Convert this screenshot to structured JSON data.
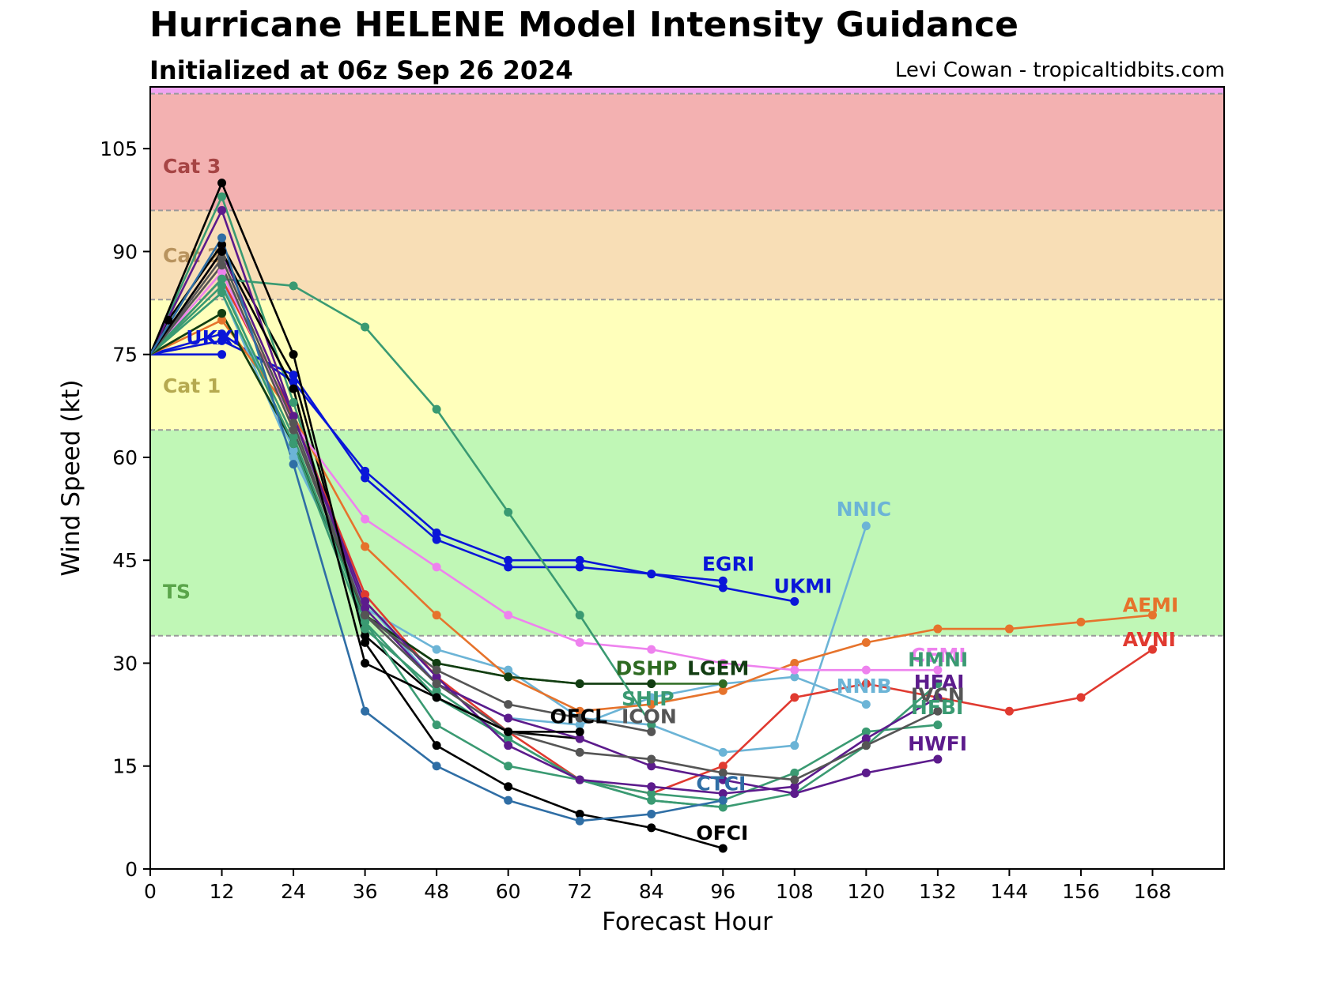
{
  "chart_data": {
    "type": "line",
    "title": "Hurricane HELENE Model Intensity Guidance",
    "subtitle": "Initialized at 06z Sep 26 2024",
    "credit": "Levi Cowan - tropicaltidbits.com",
    "xlabel": "Forecast Hour",
    "ylabel": "Wind Speed (kt)",
    "xlim": [
      0,
      180
    ],
    "ylim": [
      0,
      114
    ],
    "xticks": [
      0,
      12,
      24,
      36,
      48,
      60,
      72,
      84,
      96,
      108,
      120,
      132,
      144,
      156,
      168
    ],
    "yticks": [
      0,
      15,
      30,
      45,
      60,
      75,
      90,
      105
    ],
    "grid": false,
    "bands": [
      {
        "label": "",
        "from": 0,
        "to": 34,
        "color": "#ffffff",
        "label_color": "#ffffff"
      },
      {
        "label": "TS",
        "from": 34,
        "to": 64,
        "color": "#c0f7b6",
        "label_color": "#5aa54a"
      },
      {
        "label": "Cat 1",
        "from": 64,
        "to": 83,
        "color": "#ffffbb",
        "label_color": "#b5a94f"
      },
      {
        "label": "Cat 2",
        "from": 83,
        "to": 96,
        "color": "#f8deb6",
        "label_color": "#b8935e"
      },
      {
        "label": "Cat 3",
        "from": 96,
        "to": 113,
        "color": "#f3b1b1",
        "label_color": "#a64444"
      },
      {
        "label": "",
        "from": 113,
        "to": 114,
        "color": "#f0a4f0",
        "label_color": "#f0a4f0"
      }
    ],
    "series": [
      {
        "name": "EGRI",
        "color": "#0a16d8",
        "x": [
          0,
          12,
          24,
          36,
          48,
          60,
          72,
          84,
          96
        ],
        "y": [
          75,
          78,
          71,
          58,
          49,
          45,
          45,
          43,
          42
        ]
      },
      {
        "name": "UKMI",
        "color": "#0a16d8",
        "x": [
          0,
          12,
          24,
          36,
          48,
          60,
          72,
          84,
          96,
          108
        ],
        "y": [
          75,
          77,
          72,
          57,
          48,
          44,
          44,
          43,
          41,
          39
        ]
      },
      {
        "name": "UKXI",
        "color": "#0a16d8",
        "x": [
          0,
          12
        ],
        "y": [
          75,
          75
        ]
      },
      {
        "name": "NNIC",
        "color": "#6cb4d6",
        "x": [
          0,
          12,
          24,
          36,
          48,
          60,
          72,
          84,
          96,
          108,
          120
        ],
        "y": [
          75,
          86,
          61,
          38,
          32,
          29,
          22,
          21,
          17,
          18,
          50
        ]
      },
      {
        "name": "NNIB",
        "color": "#6cb4d6",
        "x": [
          0,
          12,
          24,
          36,
          48,
          60,
          72,
          84,
          96,
          108,
          120
        ],
        "y": [
          75,
          84,
          60,
          39,
          27,
          22,
          21,
          25,
          27,
          28,
          24
        ]
      },
      {
        "name": "AEMI",
        "color": "#e6732c",
        "x": [
          0,
          12,
          24,
          36,
          48,
          60,
          72,
          84,
          96,
          108,
          120,
          132,
          144,
          156,
          168
        ],
        "y": [
          75,
          80,
          66,
          47,
          37,
          28,
          23,
          24,
          26,
          30,
          33,
          35,
          35,
          36,
          37
        ]
      },
      {
        "name": "AVNI",
        "color": "#e03a30",
        "x": [
          0,
          12,
          24,
          36,
          48,
          60,
          72,
          84,
          96,
          108,
          120,
          132,
          144,
          156,
          168
        ],
        "y": [
          75,
          86,
          66,
          40,
          28,
          20,
          13,
          11,
          15,
          25,
          27,
          25,
          23,
          25,
          32
        ]
      },
      {
        "name": "CEMI",
        "color": "#ee82ee",
        "x": [
          0,
          12,
          24,
          36,
          48,
          60,
          72,
          84,
          96,
          108,
          120,
          132
        ],
        "y": [
          75,
          87,
          65,
          51,
          44,
          37,
          33,
          32,
          30,
          29,
          29,
          29
        ]
      },
      {
        "name": "DSHP",
        "color": "#2e6b22",
        "x": [
          0,
          12,
          24,
          36,
          48,
          60,
          72,
          84,
          96
        ],
        "y": [
          75,
          81,
          62,
          37,
          30,
          28,
          27,
          27,
          27
        ]
      },
      {
        "name": "LGEM",
        "color": "#123d12",
        "x": [
          0,
          12,
          24,
          36,
          48,
          60,
          72,
          84
        ],
        "y": [
          75,
          81,
          62,
          37,
          30,
          28,
          27,
          27
        ]
      },
      {
        "name": "SHIP",
        "color": "#3a9a72",
        "x": [
          0,
          12,
          24,
          36,
          48,
          60,
          72,
          84
        ],
        "y": [
          75,
          86,
          85,
          79,
          67,
          52,
          37,
          21
        ]
      },
      {
        "name": "HMNI",
        "color": "#3a9a72",
        "x": [
          0,
          12,
          24,
          36,
          48,
          60,
          72,
          84,
          96,
          108,
          120,
          132
        ],
        "y": [
          75,
          84,
          62,
          35,
          26,
          19,
          13,
          10,
          9,
          11,
          18,
          27
        ]
      },
      {
        "name": "HFBI",
        "color": "#3a9a72",
        "x": [
          0,
          12,
          24,
          36,
          48,
          60,
          72,
          84,
          96,
          108,
          120,
          132
        ],
        "y": [
          75,
          85,
          63,
          36,
          21,
          15,
          13,
          11,
          10,
          14,
          20,
          21
        ]
      },
      {
        "name": "HFAI",
        "color": "#5c1b8c",
        "x": [
          0,
          12,
          24,
          36,
          48,
          60,
          72,
          84,
          96,
          108,
          120,
          132
        ],
        "y": [
          75,
          96,
          66,
          39,
          28,
          18,
          13,
          12,
          11,
          12,
          19,
          25
        ]
      },
      {
        "name": "HWFI",
        "color": "#5c1b8c",
        "x": [
          0,
          12,
          24,
          36,
          48,
          60,
          72,
          84,
          96,
          108,
          120,
          132
        ],
        "y": [
          75,
          90,
          66,
          38,
          27,
          22,
          19,
          15,
          13,
          11,
          14,
          16
        ]
      },
      {
        "name": "IVCN",
        "color": "#555555",
        "x": [
          0,
          12,
          24,
          36,
          48,
          60,
          72,
          84,
          96,
          108,
          120,
          132
        ],
        "y": [
          75,
          89,
          65,
          37,
          27,
          20,
          17,
          16,
          14,
          13,
          18,
          23
        ]
      },
      {
        "name": "ICON",
        "color": "#555555",
        "x": [
          0,
          12,
          24,
          36,
          48,
          60,
          72,
          84
        ],
        "y": [
          75,
          88,
          64,
          37,
          29,
          24,
          22,
          20
        ]
      },
      {
        "name": "OFCL",
        "color": "#000000",
        "x": [
          0,
          12,
          24,
          36,
          48,
          60,
          72
        ],
        "y": [
          75,
          90,
          70,
          30,
          25,
          20,
          20
        ]
      },
      {
        "name": "OFCI",
        "color": "#000000",
        "x": [
          0,
          12,
          24,
          36,
          48,
          60,
          72,
          84,
          96
        ],
        "y": [
          75,
          100,
          75,
          33,
          18,
          12,
          8,
          6,
          3
        ]
      },
      {
        "name": "CTCI",
        "color": "#2f6ea5",
        "x": [
          0,
          12,
          24,
          36,
          48,
          60,
          72,
          84,
          96
        ],
        "y": [
          75,
          92,
          59,
          23,
          15,
          10,
          7,
          8,
          10
        ]
      }
    ],
    "extra_lines": [
      {
        "color": "#000000",
        "x": [
          0,
          3,
          12,
          24,
          36,
          48,
          60,
          72
        ],
        "y": [
          75,
          80,
          91,
          72,
          34,
          25,
          20,
          19
        ]
      },
      {
        "color": "#3a9a72",
        "x": [
          0,
          12,
          24,
          36,
          48,
          60,
          72,
          84,
          96
        ],
        "y": [
          75,
          98,
          68,
          36,
          25,
          19,
          13,
          10,
          9
        ]
      }
    ],
    "labels": [
      {
        "text": "UKXI",
        "x": 6,
        "y": 77.5,
        "color": "#0a16d8"
      },
      {
        "text": "EGRI",
        "x": 92.5,
        "y": 44.5,
        "color": "#0a16d8"
      },
      {
        "text": "UKMI",
        "x": 104.5,
        "y": 41.3,
        "color": "#0a16d8"
      },
      {
        "text": "NNIC",
        "x": 115,
        "y": 52.5,
        "color": "#6cb4d6"
      },
      {
        "text": "AEMI",
        "x": 163,
        "y": 38.5,
        "color": "#e6732c"
      },
      {
        "text": "AVNI",
        "x": 163,
        "y": 33.5,
        "color": "#e03a30"
      },
      {
        "text": "CEMI",
        "x": 127.5,
        "y": 31.2,
        "color": "#ee82ee"
      },
      {
        "text": "HMNI",
        "x": 127,
        "y": 30.6,
        "color": "#3a9a72"
      },
      {
        "text": "NNIB",
        "x": 115,
        "y": 26.7,
        "color": "#6cb4d6"
      },
      {
        "text": "HFAI",
        "x": 128,
        "y": 27.3,
        "color": "#5c1b8c"
      },
      {
        "text": "IVCN",
        "x": 127.5,
        "y": 25.4,
        "color": "#555555"
      },
      {
        "text": "HFBI",
        "x": 127.5,
        "y": 23.6,
        "color": "#3a9a72"
      },
      {
        "text": "HWFI",
        "x": 127,
        "y": 18.3,
        "color": "#5c1b8c"
      },
      {
        "text": "DSHP",
        "x": 78,
        "y": 29.3,
        "color": "#2e6b22"
      },
      {
        "text": "LGEM",
        "x": 90,
        "y": 29.3,
        "color": "#123d12"
      },
      {
        "text": "SHIP",
        "x": 79,
        "y": 24.9,
        "color": "#3a9a72"
      },
      {
        "text": "OFCL",
        "x": 67,
        "y": 22.3,
        "color": "#000000"
      },
      {
        "text": "ICON",
        "x": 79,
        "y": 22.3,
        "color": "#555555"
      },
      {
        "text": "CTCI",
        "x": 91.5,
        "y": 12.5,
        "color": "#2f6ea5"
      },
      {
        "text": "OFCI",
        "x": 91.5,
        "y": 5.3,
        "color": "#000000"
      }
    ]
  }
}
